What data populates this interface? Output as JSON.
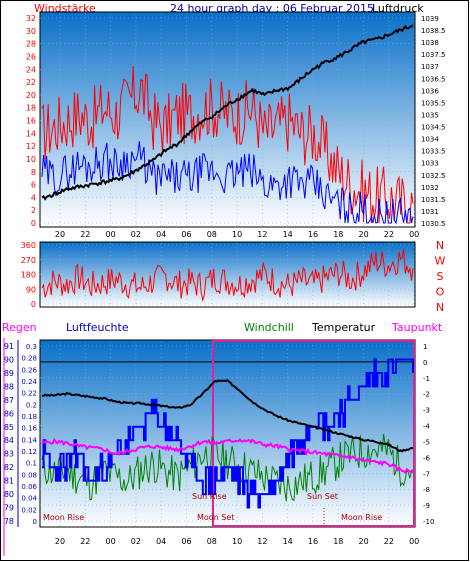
{
  "header": {
    "left_label": "Windstärke",
    "title": "24 hour graph day : 06 Februar 2015",
    "right_label": "Luftdruck"
  },
  "bottom_header": {
    "regen": "Regen",
    "luftfeuchte": "Luftfeuchte",
    "windchill": "Windchill",
    "temperatur": "Temperatur",
    "taupunkt": "Taupunkt"
  },
  "colors": {
    "wind_gust": "#ff0000",
    "wind_avg": "#0000ff",
    "pressure": "#000000",
    "direction": "#ff0000",
    "windchill": "#008000",
    "temperature": "#000000",
    "dewpoint": "#ff00ff",
    "humidity": "#0000ff",
    "rain": "#ff00ff",
    "sky_top": "#0a70c8",
    "sky_bottom": "#ffffff"
  },
  "chart_data": [
    {
      "id": "wind_pressure",
      "type": "line",
      "x_tick_labels": [
        "20",
        "22",
        "00",
        "02",
        "04",
        "06",
        "08",
        "10",
        "12",
        "14",
        "16",
        "18",
        "20",
        "22",
        "00"
      ],
      "left_axis": {
        "label": "Windstärke",
        "ticks": [
          "0",
          "2",
          "4",
          "6",
          "8",
          "10",
          "12",
          "14",
          "16",
          "18",
          "20",
          "22",
          "24",
          "26",
          "28",
          "30",
          "32"
        ],
        "ylim": [
          0,
          32
        ]
      },
      "right_axis": {
        "label": "Luftdruck",
        "ticks": [
          "1030.5",
          "1031",
          "1031.5",
          "1032",
          "1032.5",
          "1033",
          "1033.5",
          "1034",
          "1034.5",
          "1035",
          "1035.5",
          "1036",
          "1036.5",
          "1037",
          "1037.5",
          "1038",
          "1038.5",
          "1039"
        ],
        "ylim": [
          1030.5,
          1039
        ]
      },
      "series": [
        {
          "name": "Windstärke",
          "axis": "left",
          "values": [
            14,
            15,
            16,
            17,
            16,
            18,
            17,
            19,
            21,
            16,
            15,
            17,
            17,
            18,
            18,
            17,
            17,
            18,
            14,
            15,
            16,
            14,
            14,
            11,
            8,
            6,
            5,
            4,
            4,
            3,
            3
          ]
        },
        {
          "name": "Böen",
          "axis": "left",
          "values": [
            8,
            7,
            8,
            9,
            9,
            10,
            9,
            10,
            10,
            7,
            7,
            7,
            7,
            8,
            8,
            7,
            8,
            8,
            6,
            6,
            7,
            6,
            6,
            4,
            3,
            2,
            2,
            1,
            1,
            1,
            1
          ]
        },
        {
          "name": "Luftdruck",
          "axis": "right",
          "values": [
            1031.5,
            1031.7,
            1031.9,
            1032.0,
            1032.1,
            1032.2,
            1032.3,
            1032.5,
            1032.8,
            1033.1,
            1033.5,
            1033.8,
            1034.3,
            1034.7,
            1035.0,
            1035.4,
            1035.7,
            1036.0,
            1035.8,
            1036.0,
            1036.1,
            1036.5,
            1036.9,
            1037.2,
            1037.4,
            1037.7,
            1038.0,
            1038.1,
            1038.3,
            1038.5,
            1038.7
          ]
        }
      ]
    },
    {
      "id": "wind_direction",
      "type": "line",
      "x_tick_labels": [
        "20",
        "22",
        "00",
        "02",
        "04",
        "06",
        "08",
        "10",
        "12",
        "14",
        "16",
        "18",
        "20",
        "22",
        "00"
      ],
      "left_axis": {
        "ticks": [
          "0",
          "90",
          "180",
          "270",
          "360"
        ],
        "ylim": [
          0,
          360
        ]
      },
      "right_axis": {
        "ticks": [
          "N",
          "W",
          "S",
          "O",
          "N"
        ]
      },
      "series": [
        {
          "name": "Windrichtung",
          "values": [
            100,
            140,
            120,
            160,
            110,
            130,
            150,
            120,
            100,
            140,
            170,
            120,
            130,
            110,
            160,
            140,
            120,
            150,
            180,
            130,
            110,
            140,
            120,
            160,
            190,
            150,
            200,
            260,
            240,
            280,
            220
          ]
        }
      ]
    },
    {
      "id": "temp_humidity_rain",
      "type": "line",
      "x_tick_labels": [
        "20",
        "22",
        "00",
        "02",
        "04",
        "06",
        "08",
        "10",
        "12",
        "14",
        "16",
        "18",
        "20",
        "22",
        "00"
      ],
      "rain_axis": {
        "label": "Regen",
        "ticks": [
          "0",
          "0.02",
          "0.04",
          "0.06",
          "0.08",
          "0.1",
          "0.12",
          "0.14",
          "0.16",
          "0.18",
          "0.2",
          "0.22",
          "0.24",
          "0.26",
          "0.28",
          "0.3"
        ]
      },
      "humidity_axis": {
        "label": "Luftfeuchte",
        "ticks": [
          "78",
          "79",
          "80",
          "81",
          "82",
          "83",
          "84",
          "85",
          "86",
          "87",
          "88",
          "89",
          "90",
          "91"
        ],
        "ylim": [
          78,
          91
        ]
      },
      "temperature_axis": {
        "label": "Temperatur",
        "ticks": [
          "1",
          "0",
          "-1",
          "-2",
          "-3",
          "-4",
          "-5",
          "-6",
          "-7",
          "-8",
          "-9",
          "-10"
        ],
        "ylim": [
          -10,
          1
        ]
      },
      "series": [
        {
          "name": "Temperatur",
          "axis": "temperature",
          "values": [
            -2.1,
            -2.1,
            -2.0,
            -2.1,
            -2.2,
            -2.3,
            -2.5,
            -2.6,
            -2.6,
            -2.7,
            -2.8,
            -2.9,
            -2.7,
            -2.0,
            -1.2,
            -1.2,
            -1.8,
            -2.5,
            -3.0,
            -3.4,
            -3.7,
            -3.9,
            -4.1,
            -4.3,
            -4.5,
            -4.7,
            -4.9,
            -5.0,
            -5.2,
            -5.6,
            -5.4
          ]
        },
        {
          "name": "Taupunkt",
          "axis": "temperature",
          "values": [
            -5.1,
            -5.0,
            -5.1,
            -5.3,
            -5.4,
            -5.5,
            -5.8,
            -5.6,
            -5.4,
            -5.3,
            -5.4,
            -5.5,
            -5.3,
            -5.0,
            -5.1,
            -5.0,
            -4.9,
            -5.0,
            -5.2,
            -5.3,
            -5.5,
            -5.6,
            -5.7,
            -5.8,
            -5.9,
            -6.0,
            -6.2,
            -6.3,
            -6.4,
            -6.8,
            -6.9
          ]
        },
        {
          "name": "Windchill",
          "axis": "temperature",
          "values": [
            -6.5,
            -7.0,
            -6.8,
            -7.3,
            -7.6,
            -6.9,
            -7.2,
            -7.5,
            -6.8,
            -6.4,
            -6.9,
            -7.2,
            -6.6,
            -5.8,
            -5.9,
            -6.2,
            -6.5,
            -6.9,
            -7.3,
            -7.6,
            -7.8,
            -7.5,
            -7.2,
            -6.8,
            -6.2,
            -5.8,
            -5.6,
            -5.5,
            -5.6,
            -6.6,
            -6.8
          ]
        },
        {
          "name": "Luftfeuchte",
          "axis": "humidity",
          "values": [
            83,
            82,
            82,
            83,
            81,
            82,
            83,
            84,
            85,
            86,
            85,
            84,
            82,
            81,
            81,
            82,
            81,
            80,
            80,
            81,
            83,
            84,
            86,
            85,
            86,
            87,
            88,
            89,
            89,
            90,
            89
          ]
        },
        {
          "name": "Regen",
          "axis": "rain",
          "values": [
            0,
            0,
            0,
            0,
            0,
            0,
            0,
            0,
            0,
            0,
            0,
            0,
            0,
            0,
            0,
            0,
            0,
            0,
            0,
            0,
            0,
            0,
            0,
            0,
            0,
            0,
            0,
            0,
            0,
            0,
            0
          ]
        }
      ],
      "annotations": {
        "moon_rise_1": "Moon Rise",
        "moon_set": "Moon Set",
        "moon_rise_2": "Moon Rise",
        "sun_rise": "Sun Rise",
        "sun_set": "Sun Set"
      }
    }
  ]
}
